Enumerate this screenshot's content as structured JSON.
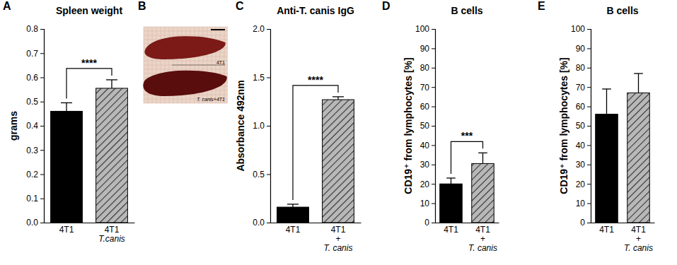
{
  "chart_data": [
    {
      "type": "bar",
      "panel": "A",
      "title": "Spleen weight",
      "y_label": "grams",
      "categories": [
        "4T1",
        "4T1\nT.canis"
      ],
      "values": [
        0.46,
        0.555
      ],
      "errors": [
        0.035,
        0.035
      ],
      "colors": [
        "#000000",
        "#b8b8b8"
      ],
      "significance": "****",
      "ylim": [
        0,
        0.8
      ],
      "yticks": [
        {
          "value": 0,
          "label": "0.0"
        },
        0.1,
        0.2,
        0.3,
        0.4,
        0.5,
        0.6,
        0.7,
        0.8
      ]
    },
    {
      "type": "image",
      "panel": "B",
      "labels": [
        "4T1",
        "T. canis+4T1"
      ]
    },
    {
      "type": "bar",
      "panel": "C",
      "title": "Anti-T. canis IgG",
      "y_label": "Absorbance 492nm",
      "categories": [
        "4T1",
        "4T1\n+\nT. canis"
      ],
      "values": [
        0.16,
        1.27
      ],
      "errors": [
        0.03,
        0.03
      ],
      "colors": [
        "#000000",
        "#b8b8b8"
      ],
      "significance": "****",
      "ylim": [
        0,
        2.0
      ],
      "yticks": [
        {
          "value": 0,
          "label": "0.0"
        },
        0.5,
        {
          "value": 1,
          "label": "1.0"
        },
        1.5,
        {
          "value": 2,
          "label": "2.0"
        }
      ]
    },
    {
      "type": "bar",
      "panel": "D",
      "title": "B cells",
      "y_label": "CD19⁺ from lymphocytes [%]",
      "categories": [
        "4T1",
        "4T1\n+\nT. canis"
      ],
      "values": [
        20,
        30.5
      ],
      "errors": [
        3,
        5.5
      ],
      "colors": [
        "#000000",
        "#b8b8b8"
      ],
      "significance": "***",
      "ylim": [
        0,
        100
      ],
      "yticks": [
        0,
        10,
        20,
        30,
        40,
        50,
        60,
        70,
        80,
        90,
        100
      ]
    },
    {
      "type": "bar",
      "panel": "E",
      "title": "B cells",
      "y_label": "CD19⁺ from lymphocytes [%]",
      "categories": [
        "4T1",
        "4T1\n+\nT. canis"
      ],
      "values": [
        56,
        67
      ],
      "errors": [
        13,
        10
      ],
      "colors": [
        "#000000",
        "#b8b8b8"
      ],
      "ylim": [
        0,
        100
      ],
      "yticks": [
        0,
        10,
        20,
        30,
        40,
        50,
        60,
        70,
        80,
        90,
        100
      ]
    }
  ]
}
